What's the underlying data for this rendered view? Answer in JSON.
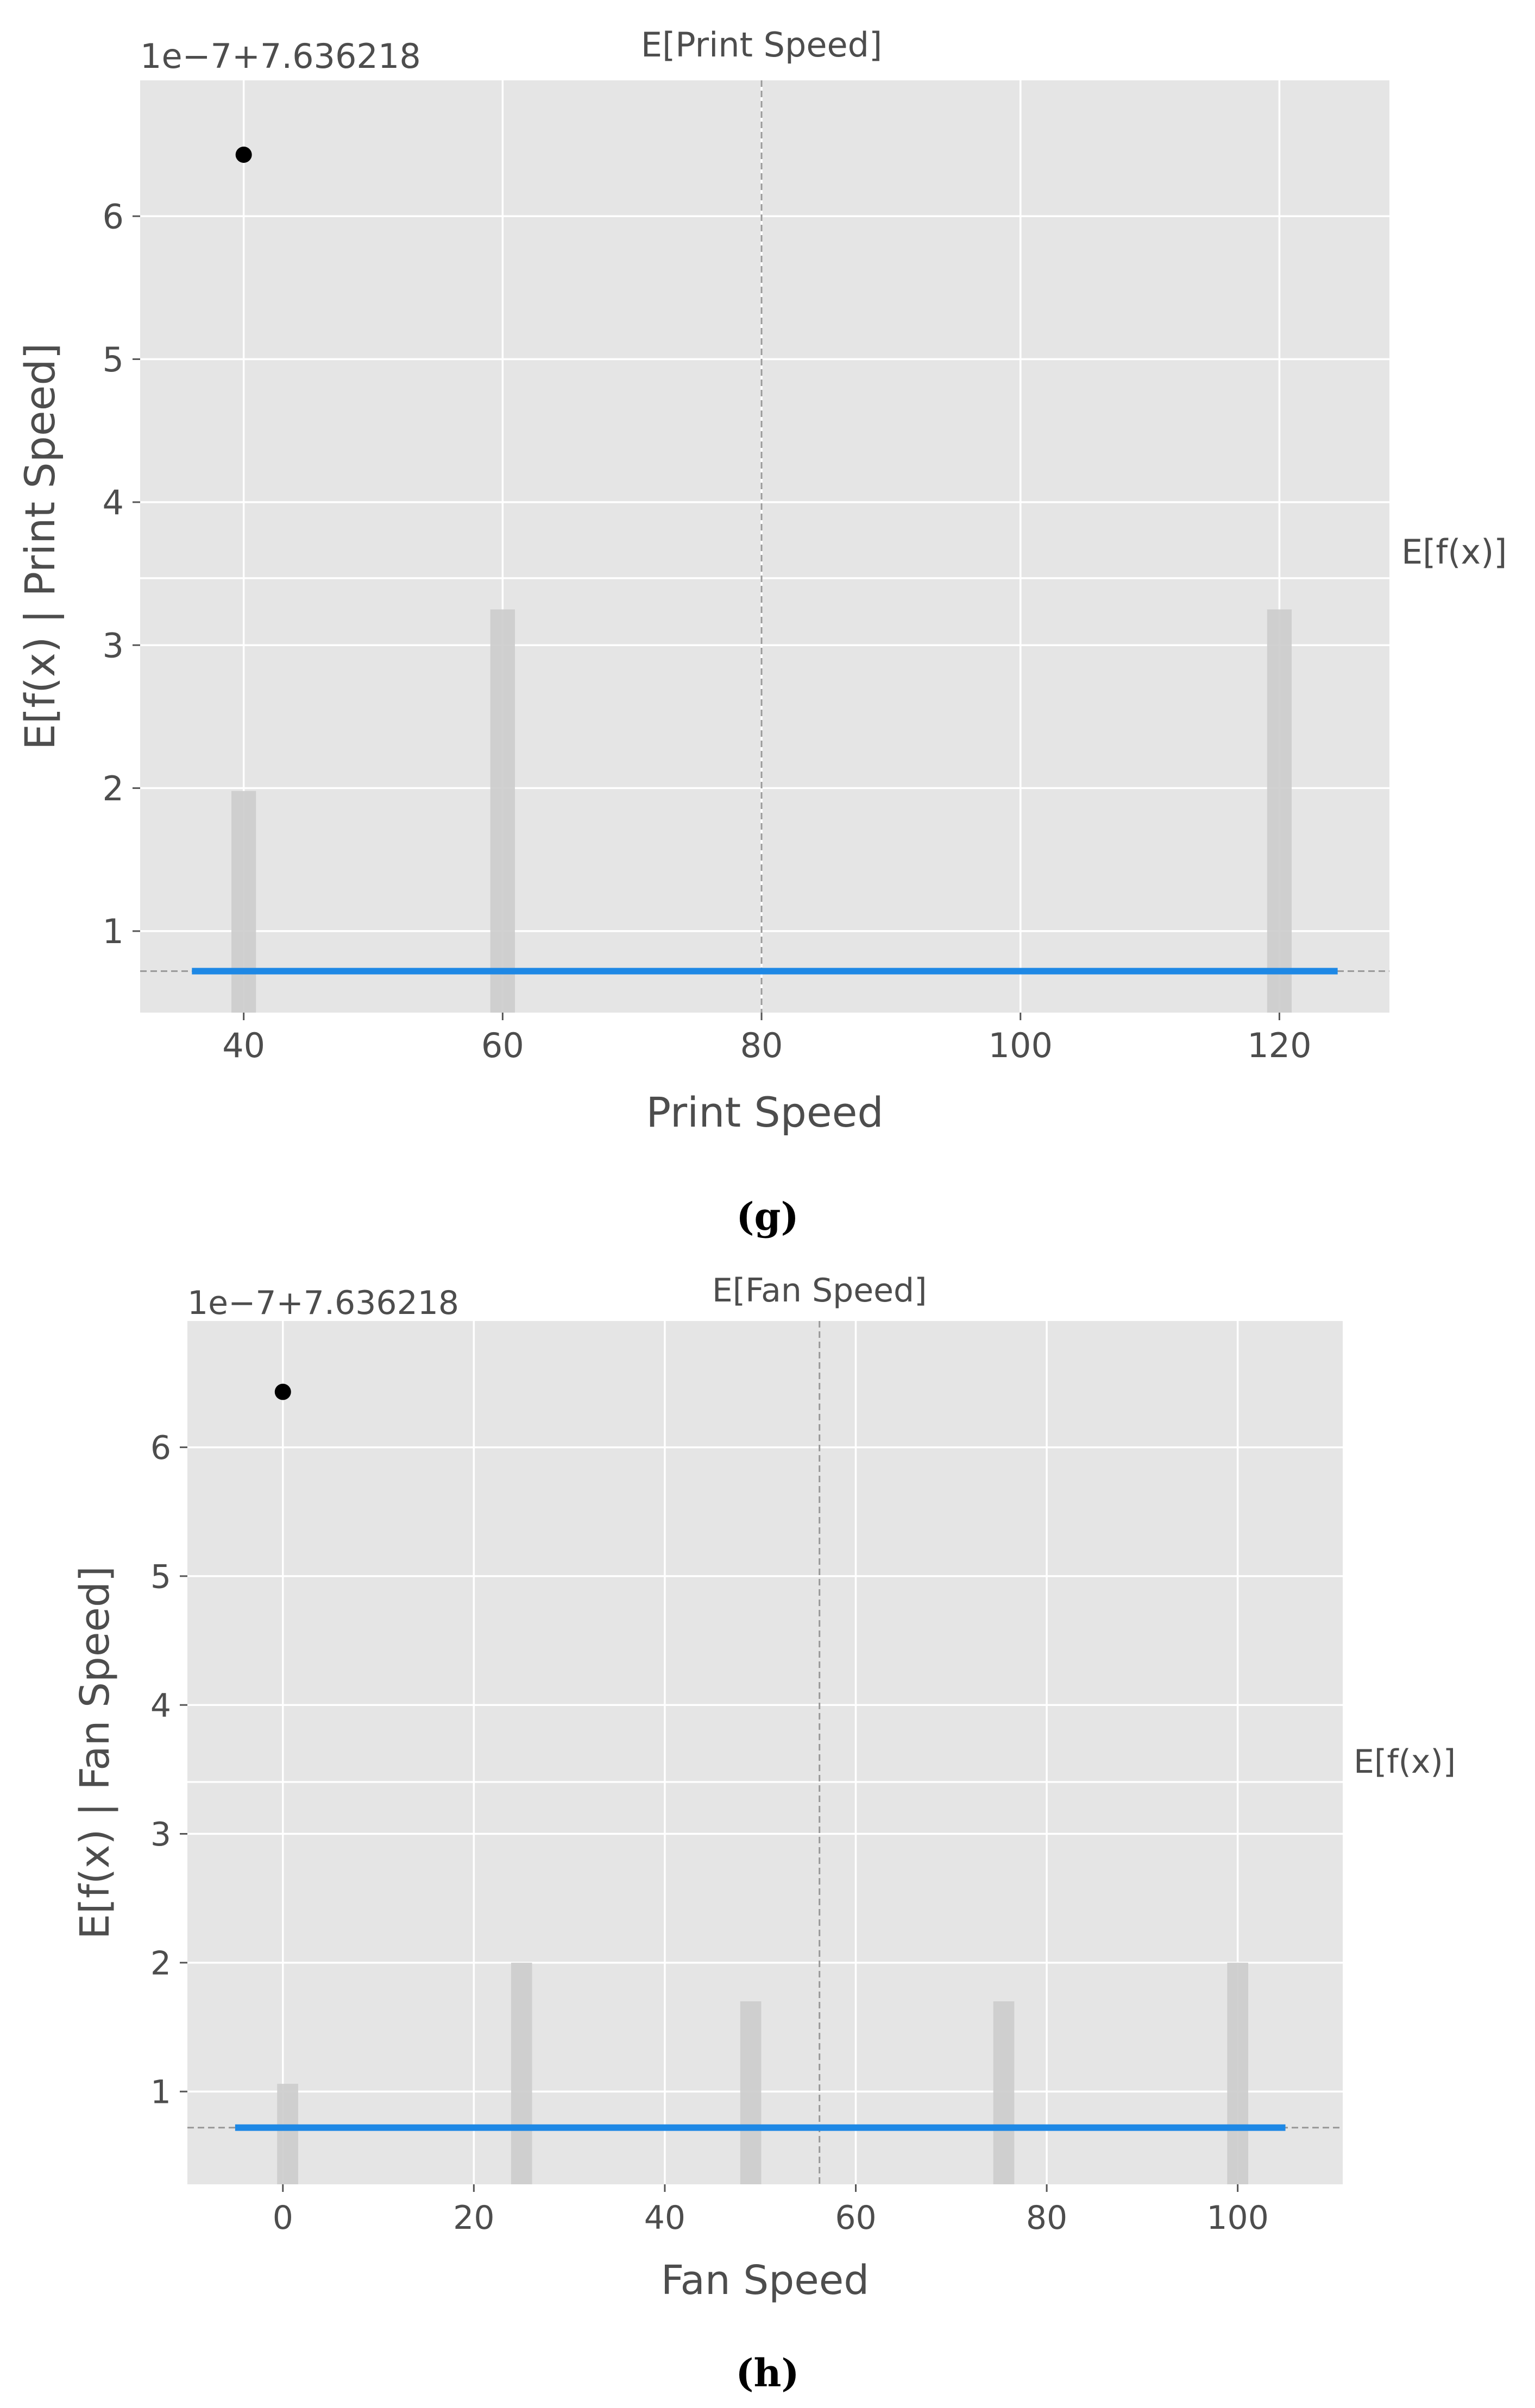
{
  "chart_data": [
    {
      "type": "scatter",
      "panel_label": "(g)",
      "offset_label": "1e−7+7.636218",
      "xlabel": "Print Speed",
      "ylabel": "E[f(x) | Print Speed]",
      "expected_x_label": "E[Print Speed]",
      "expected_y_label": "E[f(x)]",
      "xlim": [
        32,
        128.5
      ],
      "ylim": [
        0.43,
        6.95
      ],
      "xticks": [
        40,
        60,
        80,
        100,
        120
      ],
      "yticks": [
        1,
        2,
        3,
        4,
        5,
        6
      ],
      "grid": true,
      "expected_x": 80,
      "expected_y": 0.72,
      "points": [
        {
          "x": 40,
          "y": 6.43
        }
      ],
      "dependence_line": {
        "x": [
          36,
          124.5
        ],
        "y": 0.72
      },
      "histogram": [
        {
          "x": 40,
          "height": 1.68
        },
        {
          "x": 60,
          "height": 2.95
        },
        {
          "x": 120,
          "height": 2.95
        }
      ],
      "hist_bar_width": 1.9,
      "colors": {
        "line": "#1e88e5",
        "point": "#000000",
        "hist": "#cccccc",
        "bg": "#e5e5e5",
        "grid": "#ffffff"
      }
    },
    {
      "type": "scatter",
      "panel_label": "(h)",
      "offset_label": "1e−7+7.636218",
      "xlabel": "Fan Speed",
      "ylabel": "E[f(x) | Fan Speed]",
      "expected_x_label": "E[Fan Speed]",
      "expected_y_label": "E[f(x)]",
      "xlim": [
        -10,
        111
      ],
      "ylim": [
        0.28,
        6.98
      ],
      "xticks": [
        0,
        20,
        40,
        60,
        80,
        100
      ],
      "yticks": [
        1,
        2,
        3,
        4,
        5,
        6
      ],
      "grid": true,
      "expected_x": 56.2,
      "expected_y": 0.72,
      "points": [
        {
          "x": 0,
          "y": 6.43
        }
      ],
      "dependence_line": {
        "x": [
          -5,
          105
        ],
        "y": 0.72
      },
      "histogram": [
        {
          "x": 0.5,
          "height": 1.06
        },
        {
          "x": 25,
          "height": 2.0
        },
        {
          "x": 49,
          "height": 1.7
        },
        {
          "x": 75.5,
          "height": 1.7
        },
        {
          "x": 100,
          "height": 2.0
        }
      ],
      "hist_bar_width": 2.2,
      "colors": {
        "line": "#1e88e5",
        "point": "#000000",
        "hist": "#cccccc",
        "bg": "#e5e5e5",
        "grid": "#ffffff"
      }
    }
  ]
}
